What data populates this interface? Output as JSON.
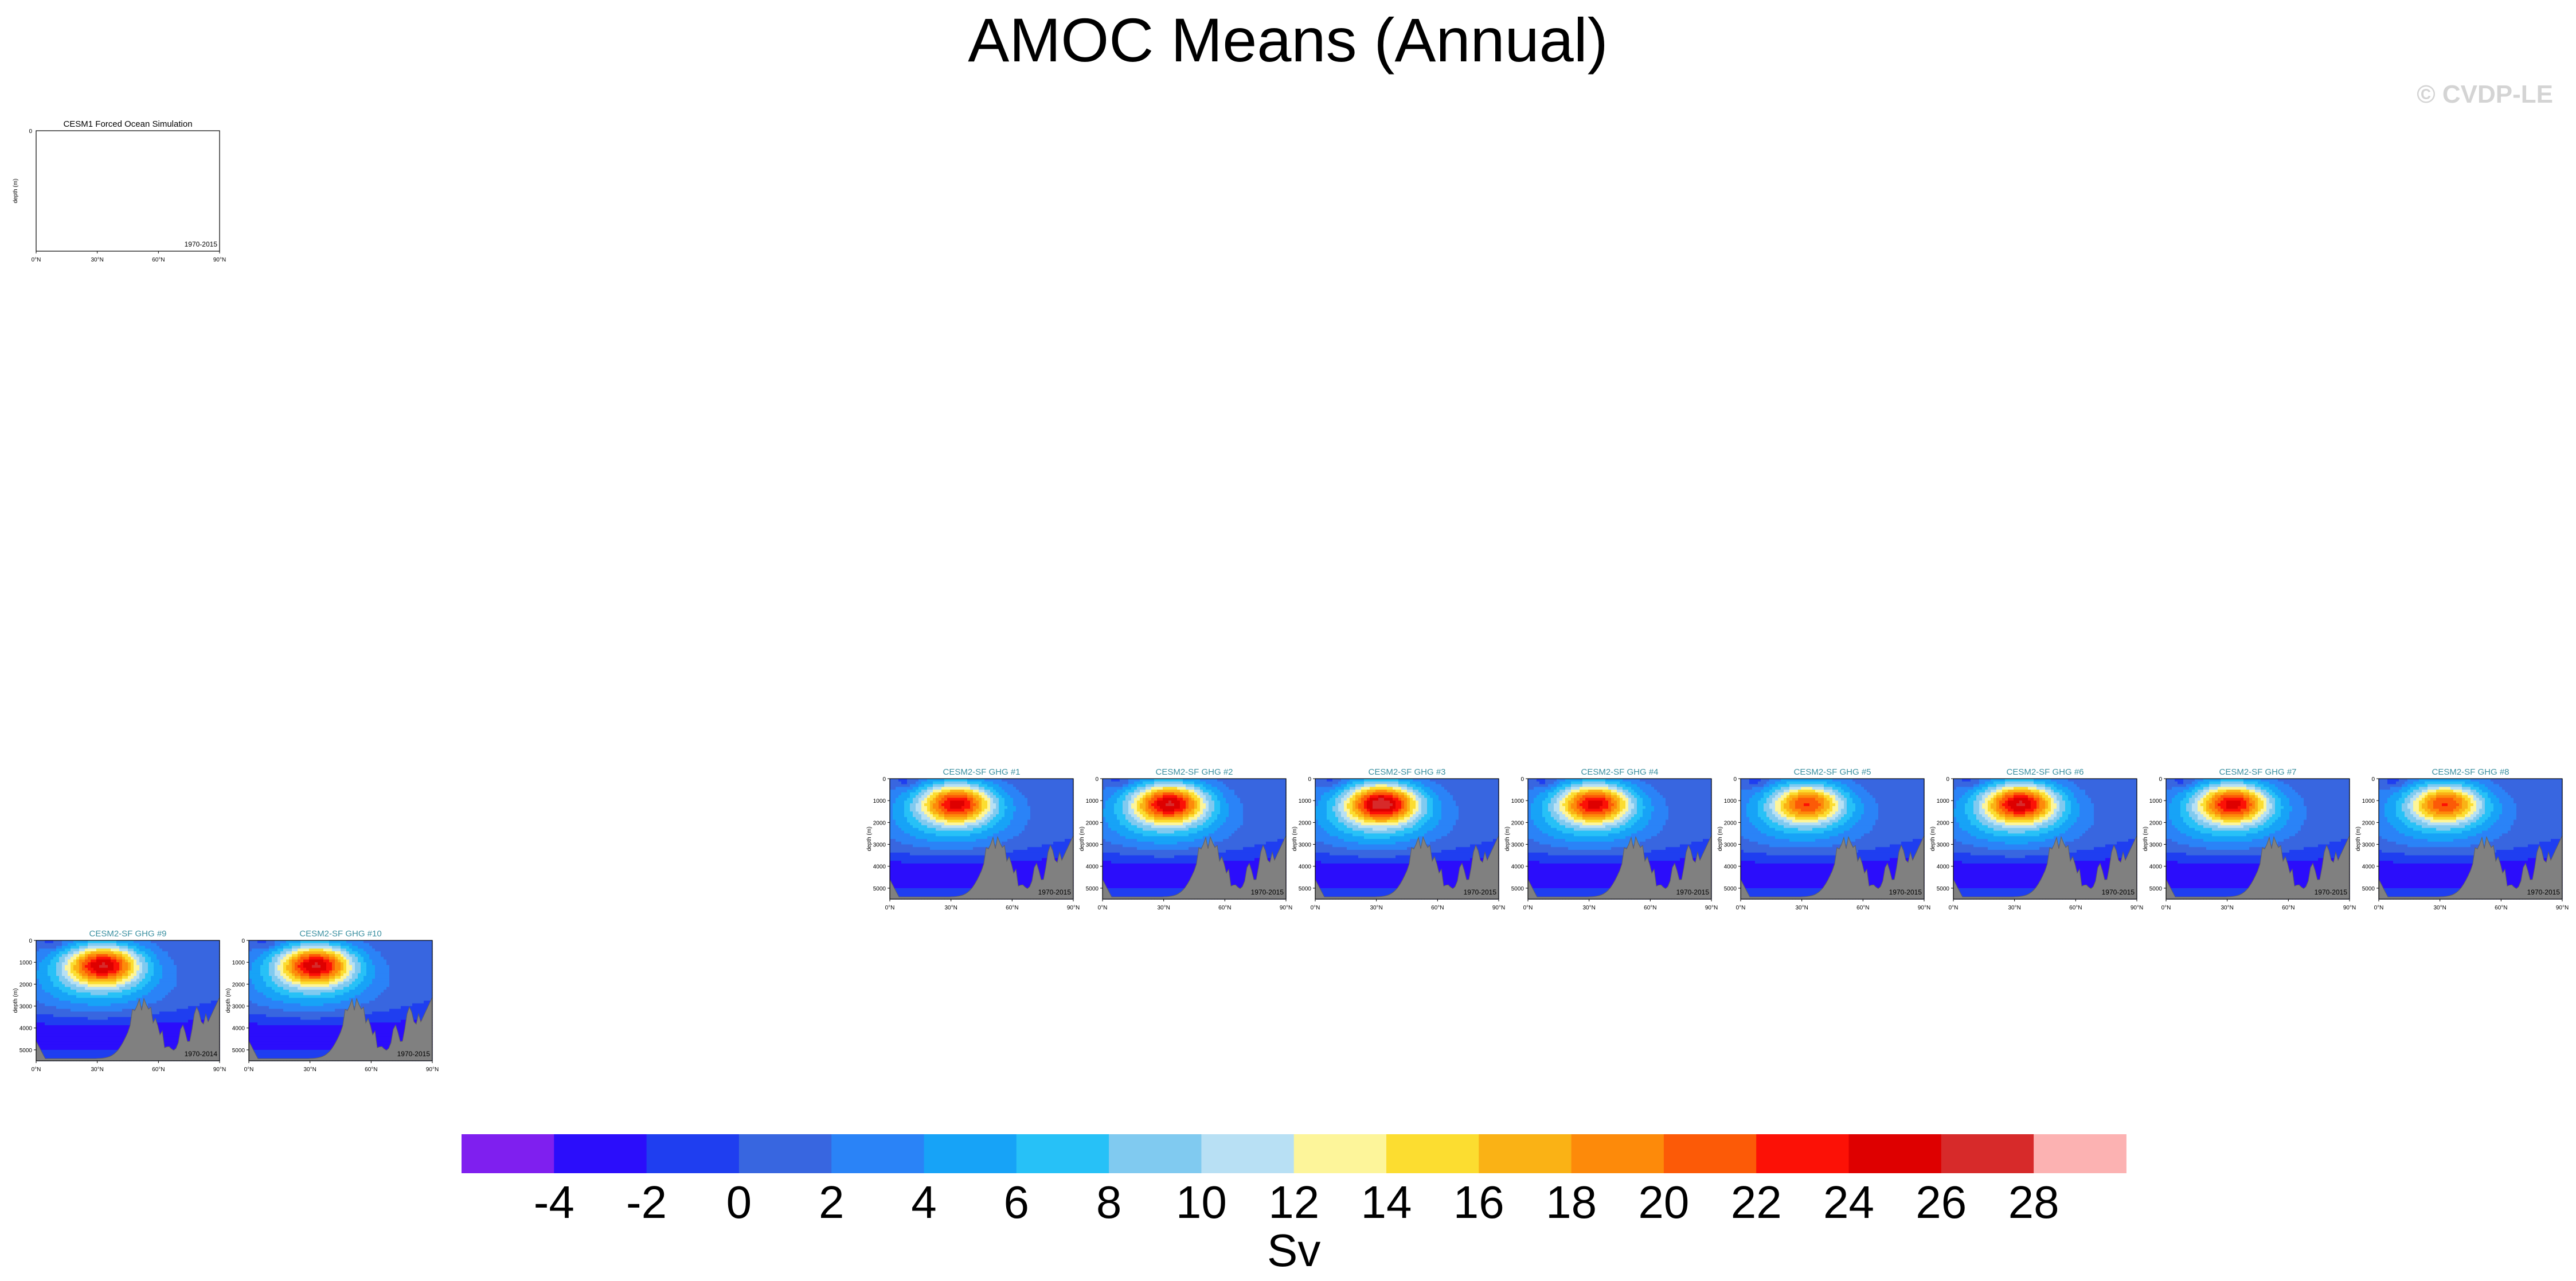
{
  "title": "AMOC Means (Annual)",
  "watermark": "© CVDP-LE",
  "chart_data": {
    "type": "contour",
    "quantity": "Atlantic meridional overturning streamfunction (annual mean)",
    "units": "Sv",
    "x_ticks": [
      "0°N",
      "30°N",
      "60°N",
      "90°N"
    ],
    "xlim": [
      0,
      90
    ],
    "ylim": [
      0,
      5500
    ],
    "y_ticks": [
      0,
      1000,
      2000,
      3000,
      4000,
      5000
    ],
    "ylabel": "depth (m)",
    "colorbar": {
      "label": "Sv",
      "levels": [
        -4,
        -2,
        0,
        2,
        4,
        6,
        8,
        10,
        12,
        14,
        16,
        18,
        20,
        22,
        24,
        26,
        28
      ],
      "colors": [
        "#7f1fef",
        "#2b0dfb",
        "#1f3ef0",
        "#3866e0",
        "#2a83f7",
        "#17a3f7",
        "#27c1f7",
        "#80caf0",
        "#b8e0f4",
        "#fdf59a",
        "#fcdd30",
        "#fab215",
        "#fd8a0a",
        "#fc5a07",
        "#fc1106",
        "#de0000",
        "#d72a2a",
        "#fcb2b2"
      ]
    },
    "panels": [
      {
        "title": "CESM1 Forced Ocean Simulation",
        "period": "1970-2015",
        "has_data": false
      },
      {
        "title": "CESM2-SF GHG #1",
        "period": "1970-2015",
        "has_data": true,
        "max_sv": 18
      },
      {
        "title": "CESM2-SF GHG #2",
        "period": "1970-2015",
        "has_data": true,
        "max_sv": 19
      },
      {
        "title": "CESM2-SF GHG #3",
        "period": "1970-2015",
        "has_data": true,
        "max_sv": 20
      },
      {
        "title": "CESM2-SF GHG #4",
        "period": "1970-2015",
        "has_data": true,
        "max_sv": 18
      },
      {
        "title": "CESM2-SF GHG #5",
        "period": "1970-2015",
        "has_data": true,
        "max_sv": 16
      },
      {
        "title": "CESM2-SF GHG #6",
        "period": "1970-2015",
        "has_data": true,
        "max_sv": 19
      },
      {
        "title": "CESM2-SF GHG #7",
        "period": "1970-2015",
        "has_data": true,
        "max_sv": 18
      },
      {
        "title": "CESM2-SF GHG #8",
        "period": "1970-2015",
        "has_data": true,
        "max_sv": 16
      },
      {
        "title": "CESM2-SF GHG #9",
        "period": "1970-2014",
        "has_data": true,
        "max_sv": 19
      },
      {
        "title": "CESM2-SF GHG #10",
        "period": "1970-2015",
        "has_data": true,
        "max_sv": 19
      }
    ]
  }
}
